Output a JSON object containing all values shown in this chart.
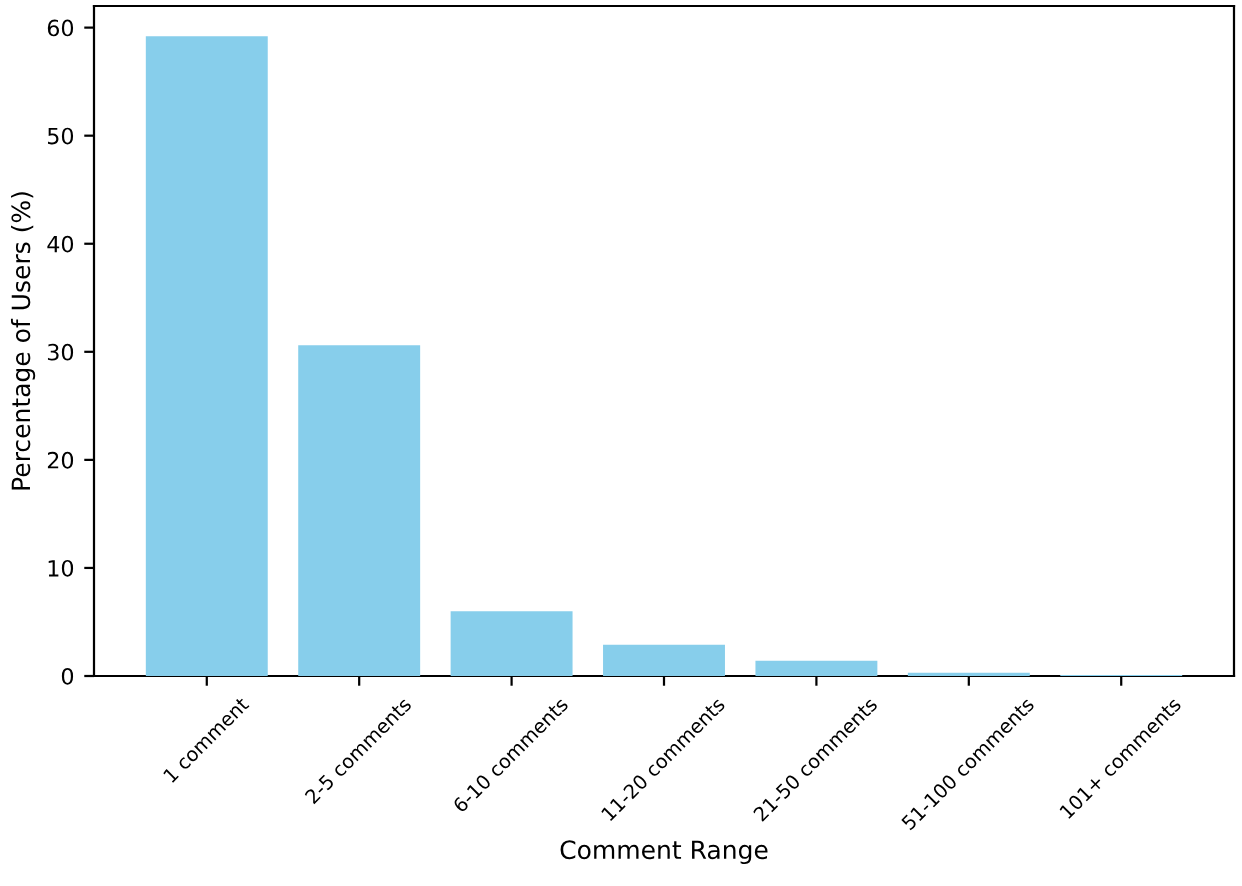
{
  "chart_data": {
    "type": "bar",
    "xlabel": "Comment Range",
    "ylabel": "Percentage of Users (%)",
    "categories": [
      "1 comment",
      "2-5 comments",
      "6-10 comments",
      "11-20 comments",
      "21-50 comments",
      "51-100 comments",
      "101+ comments"
    ],
    "values": [
      59.2,
      30.6,
      6.0,
      2.9,
      1.4,
      0.3,
      0.1
    ],
    "color": "#87ceeb",
    "ylim": [
      0,
      62
    ],
    "yticks": [
      0,
      10,
      20,
      30,
      40,
      50,
      60
    ],
    "grid": false,
    "legend": false
  }
}
